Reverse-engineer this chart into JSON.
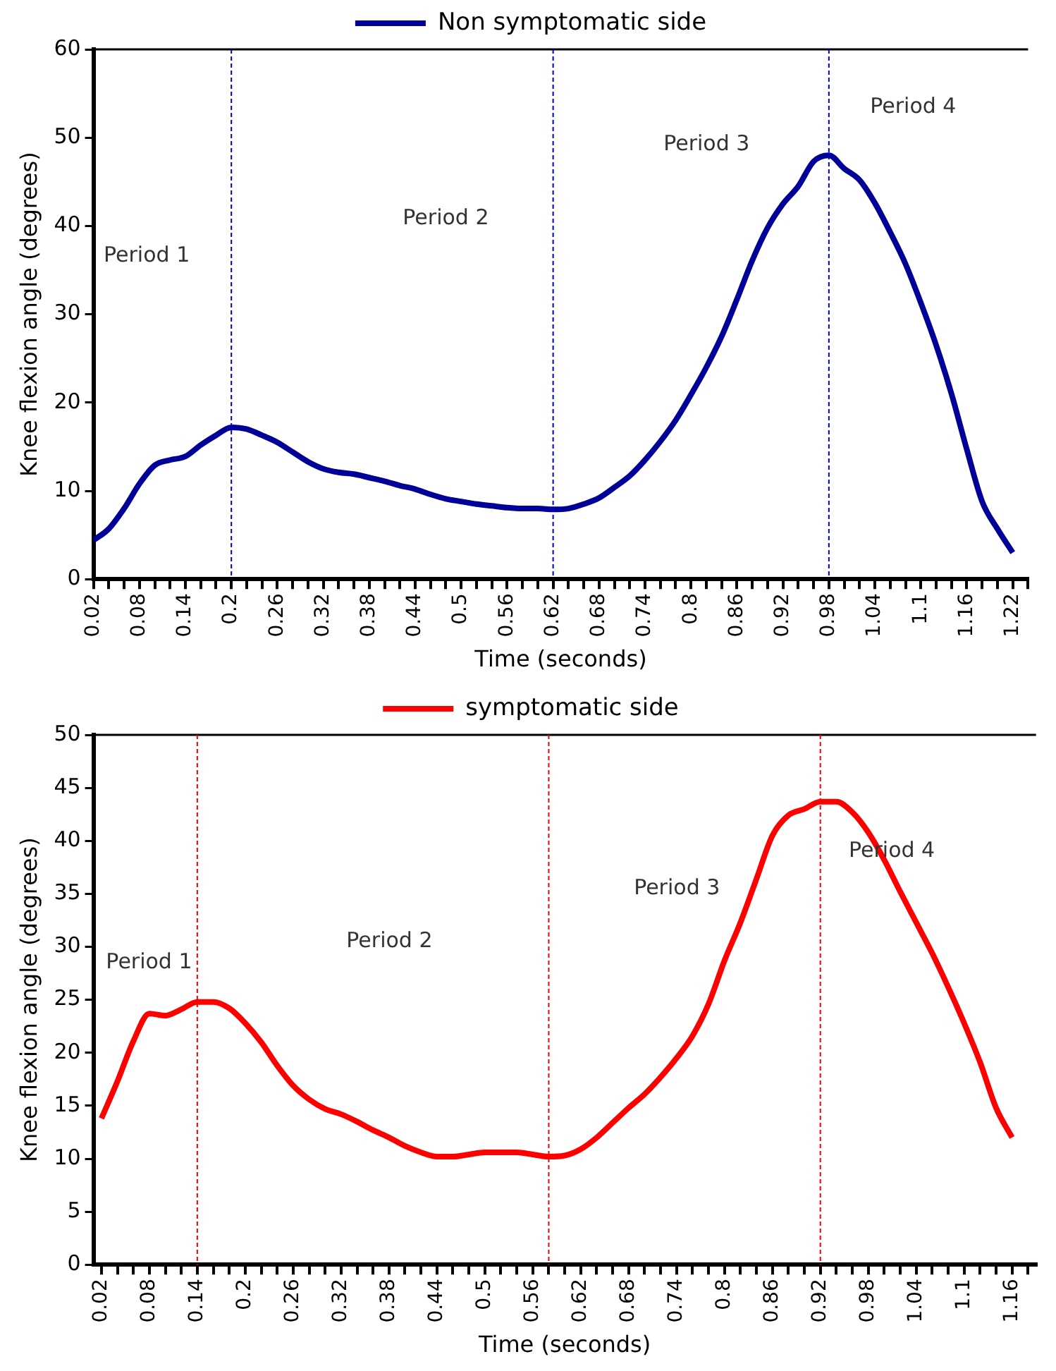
{
  "chart_data": [
    {
      "type": "line",
      "xlabel": "Time (seconds)",
      "ylabel": "Knee flexion angle (degrees)",
      "legend": "top",
      "grid": false,
      "marker": "none",
      "line_style": "solid",
      "x": [
        0.02,
        0.04,
        0.06,
        0.08,
        0.1,
        0.12,
        0.14,
        0.16,
        0.18,
        0.2,
        0.22,
        0.24,
        0.26,
        0.28,
        0.3,
        0.32,
        0.34,
        0.36,
        0.38,
        0.4,
        0.42,
        0.44,
        0.46,
        0.48,
        0.5,
        0.52,
        0.54,
        0.56,
        0.58,
        0.6,
        0.62,
        0.64,
        0.66,
        0.68,
        0.7,
        0.72,
        0.74,
        0.76,
        0.78,
        0.8,
        0.82,
        0.84,
        0.86,
        0.88,
        0.9,
        0.92,
        0.94,
        0.96,
        0.98,
        1,
        1.02,
        1.04,
        1.06,
        1.08,
        1.1,
        1.12,
        1.14,
        1.16,
        1.18,
        1.2,
        1.22
      ],
      "series": [
        {
          "name": "Non symptomatic side",
          "color": "#000099",
          "values": [
            4.4,
            5.7,
            8,
            10.8,
            12.9,
            13.5,
            13.9,
            15.2,
            16.3,
            17.2,
            17,
            16.3,
            15.5,
            14.4,
            13.3,
            12.5,
            12.1,
            11.9,
            11.5,
            11.1,
            10.6,
            10.2,
            9.6,
            9.1,
            8.8,
            8.5,
            8.3,
            8.1,
            8,
            8,
            7.9,
            8,
            8.5,
            9.2,
            10.4,
            11.7,
            13.5,
            15.6,
            18,
            20.9,
            24,
            27.5,
            31.7,
            36.1,
            39.8,
            42.5,
            44.5,
            47.3,
            48,
            46.5,
            45.2,
            42.6,
            39.3,
            35.7,
            31.3,
            26.5,
            21,
            14.7,
            8.8,
            5.7,
            3
          ]
        }
      ],
      "xlim": [
        0.02,
        1.24
      ],
      "xticks": [
        0.02,
        {
          "value": 0.04,
          "label": null
        },
        {
          "value": 0.06,
          "label": null
        },
        0.08,
        {
          "value": 0.1,
          "label": null
        },
        {
          "value": 0.12,
          "label": null
        },
        0.14,
        {
          "value": 0.16,
          "label": null
        },
        {
          "value": 0.18,
          "label": null
        },
        0.2,
        {
          "value": 0.22,
          "label": null
        },
        {
          "value": 0.24,
          "label": null
        },
        0.26,
        {
          "value": 0.28,
          "label": null
        },
        {
          "value": 0.3,
          "label": null
        },
        0.32,
        {
          "value": 0.34,
          "label": null
        },
        {
          "value": 0.36,
          "label": null
        },
        0.38,
        {
          "value": 0.4,
          "label": null
        },
        {
          "value": 0.42,
          "label": null
        },
        0.44,
        {
          "value": 0.46,
          "label": null
        },
        {
          "value": 0.48,
          "label": null
        },
        0.5,
        {
          "value": 0.52,
          "label": null
        },
        {
          "value": 0.54,
          "label": null
        },
        0.56,
        {
          "value": 0.58,
          "label": null
        },
        {
          "value": 0.6,
          "label": null
        },
        0.62,
        {
          "value": 0.64,
          "label": null
        },
        {
          "value": 0.66,
          "label": null
        },
        0.68,
        {
          "value": 0.7,
          "label": null
        },
        {
          "value": 0.72,
          "label": null
        },
        0.74,
        {
          "value": 0.76,
          "label": null
        },
        {
          "value": 0.78,
          "label": null
        },
        0.8,
        {
          "value": 0.82,
          "label": null
        },
        {
          "value": 0.84,
          "label": null
        },
        0.86,
        {
          "value": 0.88,
          "label": null
        },
        {
          "value": 0.9,
          "label": null
        },
        0.92,
        {
          "value": 0.94,
          "label": null
        },
        {
          "value": 0.96,
          "label": null
        },
        0.98,
        {
          "value": 1,
          "label": null
        },
        {
          "value": 1.02,
          "label": null
        },
        1.04,
        {
          "value": 1.06,
          "label": null
        },
        {
          "value": 1.08,
          "label": null
        },
        1.1,
        {
          "value": 1.12,
          "label": null
        },
        {
          "value": 1.14,
          "label": null
        },
        1.16,
        {
          "value": 1.18,
          "label": null
        },
        {
          "value": 1.2,
          "label": null
        },
        1.22,
        {
          "value": 1.24,
          "label": null
        }
      ],
      "ylim": [
        0,
        60
      ],
      "yticks": [
        0,
        10,
        20,
        30,
        40,
        50,
        60
      ],
      "ref_lines": [
        {
          "axis": "x",
          "value": 0.2,
          "color": "#0000cc",
          "line_style": "dashed"
        },
        {
          "axis": "x",
          "value": 0.62,
          "color": "#0000cc",
          "line_style": "dashed"
        },
        {
          "axis": "x",
          "value": 0.98,
          "color": "#0000cc",
          "line_style": "dashed"
        }
      ],
      "annotations": [
        "Period 1",
        "Period 2",
        "Period 3",
        "Period 4"
      ]
    },
    {
      "type": "line",
      "xlabel": "Time (seconds)",
      "ylabel": "Knee flexion angle (degrees)",
      "legend": "top",
      "grid": false,
      "marker": "none",
      "line_style": "solid",
      "x": [
        0.02,
        0.04,
        0.06,
        0.08,
        0.1,
        0.12,
        0.14,
        0.16,
        0.18,
        0.2,
        0.22,
        0.24,
        0.26,
        0.28,
        0.3,
        0.32,
        0.34,
        0.36,
        0.38,
        0.4,
        0.42,
        0.44,
        0.46,
        0.48,
        0.5,
        0.52,
        0.54,
        0.56,
        0.58,
        0.6,
        0.62,
        0.64,
        0.66,
        0.68,
        0.7,
        0.72,
        0.74,
        0.76,
        0.78,
        0.8,
        0.82,
        0.84,
        0.86,
        0.88,
        0.9,
        0.92,
        0.94,
        0.96,
        0.98,
        1,
        1.02,
        1.04,
        1.06,
        1.08,
        1.1,
        1.12,
        1.14,
        1.16
      ],
      "series": [
        {
          "name": "symptomatic side",
          "color": "#ff0000",
          "values": [
            13.8,
            17.3,
            21.1,
            23.7,
            23.5,
            24.1,
            24.8,
            24.8,
            24.2,
            22.8,
            21,
            18.8,
            16.9,
            15.6,
            14.7,
            14.2,
            13.5,
            12.7,
            12,
            11.2,
            10.6,
            10.2,
            10.2,
            10.4,
            10.6,
            10.6,
            10.6,
            10.4,
            10.2,
            10.3,
            10.9,
            12,
            13.4,
            14.8,
            16.1,
            17.7,
            19.5,
            21.6,
            24.6,
            28.7,
            32.3,
            36.4,
            40.5,
            42.4,
            43,
            43.7,
            43.7,
            42.7,
            40.8,
            38.2,
            35.2,
            32.3,
            29.4,
            26.2,
            22.8,
            19.1,
            14.8,
            12
          ]
        }
      ],
      "xlim": [
        0.01,
        1.19
      ],
      "xticks": [
        0.02,
        {
          "value": 0.04,
          "label": null
        },
        {
          "value": 0.06,
          "label": null
        },
        0.08,
        {
          "value": 0.1,
          "label": null
        },
        {
          "value": 0.12,
          "label": null
        },
        0.14,
        {
          "value": 0.16,
          "label": null
        },
        {
          "value": 0.18,
          "label": null
        },
        0.2,
        {
          "value": 0.22,
          "label": null
        },
        {
          "value": 0.24,
          "label": null
        },
        0.26,
        {
          "value": 0.28,
          "label": null
        },
        {
          "value": 0.3,
          "label": null
        },
        0.32,
        {
          "value": 0.34,
          "label": null
        },
        {
          "value": 0.36,
          "label": null
        },
        0.38,
        {
          "value": 0.4,
          "label": null
        },
        {
          "value": 0.42,
          "label": null
        },
        0.44,
        {
          "value": 0.46,
          "label": null
        },
        {
          "value": 0.48,
          "label": null
        },
        0.5,
        {
          "value": 0.52,
          "label": null
        },
        {
          "value": 0.54,
          "label": null
        },
        0.56,
        {
          "value": 0.58,
          "label": null
        },
        {
          "value": 0.6,
          "label": null
        },
        0.62,
        {
          "value": 0.64,
          "label": null
        },
        {
          "value": 0.66,
          "label": null
        },
        0.68,
        {
          "value": 0.7,
          "label": null
        },
        {
          "value": 0.72,
          "label": null
        },
        0.74,
        {
          "value": 0.76,
          "label": null
        },
        {
          "value": 0.78,
          "label": null
        },
        0.8,
        {
          "value": 0.82,
          "label": null
        },
        {
          "value": 0.84,
          "label": null
        },
        0.86,
        {
          "value": 0.88,
          "label": null
        },
        {
          "value": 0.9,
          "label": null
        },
        0.92,
        {
          "value": 0.94,
          "label": null
        },
        {
          "value": 0.96,
          "label": null
        },
        0.98,
        {
          "value": 1,
          "label": null
        },
        {
          "value": 1.02,
          "label": null
        },
        1.04,
        {
          "value": 1.06,
          "label": null
        },
        {
          "value": 1.08,
          "label": null
        },
        1.1,
        {
          "value": 1.12,
          "label": null
        },
        {
          "value": 1.14,
          "label": null
        },
        1.16,
        {
          "value": 1.18,
          "label": null
        }
      ],
      "ylim": [
        0,
        50
      ],
      "yticks": [
        0,
        5,
        10,
        15,
        20,
        25,
        30,
        35,
        40,
        45,
        50
      ],
      "ref_lines": [
        {
          "axis": "x",
          "value": 0.14,
          "color": "#ff0000",
          "line_style": "dashed"
        },
        {
          "axis": "x",
          "value": 0.58,
          "color": "#ff0000",
          "line_style": "dashed"
        },
        {
          "axis": "x",
          "value": 0.92,
          "color": "#ff0000",
          "line_style": "dashed"
        }
      ],
      "annotations": [
        "Period 1",
        "Period 2",
        "Period 3",
        "Period 4"
      ]
    }
  ]
}
